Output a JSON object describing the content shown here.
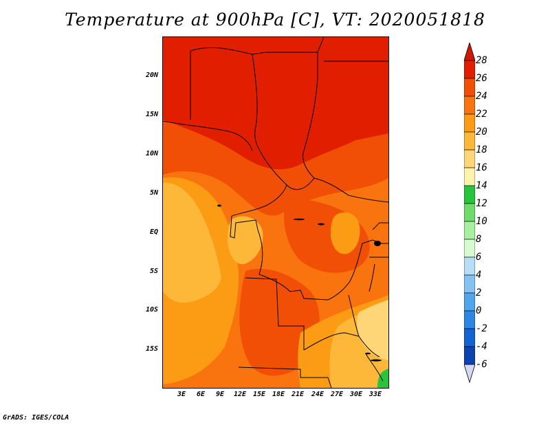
{
  "title": "Temperature at 900hPa [C], VT: 2020051818",
  "footer": "GrADS: IGES/COLA",
  "lat_labels": [
    "20N",
    "15N",
    "10N",
    "5N",
    "EQ",
    "5S",
    "10S",
    "15S"
  ],
  "lon_labels": [
    "3E",
    "6E",
    "9E",
    "12E",
    "15E",
    "18E",
    "21E",
    "24E",
    "27E",
    "30E",
    "33E"
  ],
  "colorbar": {
    "labels": [
      "28",
      "26",
      "24",
      "22",
      "20",
      "18",
      "16",
      "14",
      "12",
      "10",
      "8",
      "6",
      "4",
      "2",
      "0",
      "-2",
      "-4",
      "-6"
    ],
    "colors": [
      "#e11f00",
      "#f14f06",
      "#f9740e",
      "#fc9b14",
      "#fdb83a",
      "#fed677",
      "#fef3ad",
      "#27c43c",
      "#6fdb6b",
      "#a6f09f",
      "#d5fbcf",
      "#b7ddf7",
      "#85c2f1",
      "#52a4ec",
      "#2c86e3",
      "#1563d2",
      "#0b43b0",
      "#0a1f85"
    ],
    "top_triangle_color": "#cc1a00",
    "bottom_triangle_color": "#d6d6f6"
  }
}
